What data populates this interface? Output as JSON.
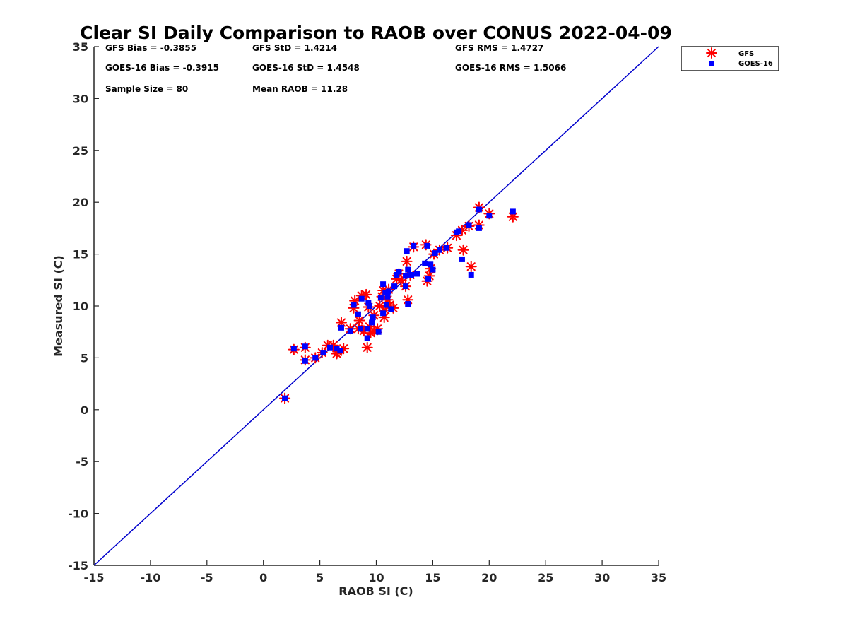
{
  "chart_data": {
    "type": "scatter",
    "title": "Clear SI Daily Comparison to RAOB over CONUS 2022-04-09",
    "xlabel": "RAOB SI (C)",
    "ylabel": "Measured SI (C)",
    "xlim": [
      -15,
      35
    ],
    "ylim": [
      -15,
      35
    ],
    "xticks": [
      "-15",
      "-10",
      "-5",
      "0",
      "5",
      "10",
      "15",
      "20",
      "25",
      "30",
      "35"
    ],
    "yticks": [
      "-15",
      "-10",
      "-5",
      "0",
      "5",
      "10",
      "15",
      "20",
      "25",
      "30",
      "35"
    ],
    "grid": false,
    "legend_position": "outside-top-right",
    "reference_line": {
      "type": "1:1",
      "color": "#0000cc",
      "x": [
        -15,
        35
      ],
      "y": [
        -15,
        35
      ]
    },
    "stats": [
      {
        "label": "GFS Bias = -0.3855"
      },
      {
        "label": "GFS StD = 1.4214"
      },
      {
        "label": "GFS RMS = 1.4727"
      },
      {
        "label": "GOES-16 Bias = -0.3915"
      },
      {
        "label": "GOES-16 StD = 1.4548"
      },
      {
        "label": "GOES-16 RMS = 1.5066"
      },
      {
        "label": "Sample Size = 80"
      },
      {
        "label": "Mean RAOB = 11.28"
      }
    ],
    "series": [
      {
        "name": "GFS",
        "marker": "asterisk",
        "color": "#ff0000",
        "points": [
          [
            1.9,
            1.1
          ],
          [
            2.7,
            5.8
          ],
          [
            3.7,
            4.8
          ],
          [
            3.7,
            6.0
          ],
          [
            4.6,
            5.0
          ],
          [
            5.2,
            5.5
          ],
          [
            5.7,
            6.2
          ],
          [
            6.2,
            6.2
          ],
          [
            6.6,
            5.6
          ],
          [
            6.5,
            5.4
          ],
          [
            6.9,
            8.4
          ],
          [
            7.1,
            5.9
          ],
          [
            7.7,
            7.8
          ],
          [
            8.0,
            9.8
          ],
          [
            8.1,
            10.5
          ],
          [
            8.4,
            7.8
          ],
          [
            8.5,
            8.6
          ],
          [
            8.7,
            11.0
          ],
          [
            8.9,
            7.6
          ],
          [
            9.1,
            11.1
          ],
          [
            9.2,
            6.0
          ],
          [
            9.3,
            9.9
          ],
          [
            9.4,
            8.0
          ],
          [
            9.5,
            7.4
          ],
          [
            9.8,
            7.6
          ],
          [
            9.8,
            9.1
          ],
          [
            10.1,
            7.8
          ],
          [
            10.3,
            10.0
          ],
          [
            10.5,
            10.9
          ],
          [
            10.6,
            11.5
          ],
          [
            10.7,
            8.9
          ],
          [
            10.8,
            9.6
          ],
          [
            11.0,
            10.6
          ],
          [
            11.1,
            11.6
          ],
          [
            11.2,
            10.1
          ],
          [
            11.5,
            9.8
          ],
          [
            11.8,
            12.6
          ],
          [
            12.0,
            13.1
          ],
          [
            12.2,
            12.5
          ],
          [
            12.6,
            11.9
          ],
          [
            12.8,
            10.6
          ],
          [
            12.7,
            14.3
          ],
          [
            13.0,
            13.0
          ],
          [
            13.3,
            15.7
          ],
          [
            14.4,
            15.9
          ],
          [
            14.5,
            12.4
          ],
          [
            14.7,
            12.9
          ],
          [
            14.8,
            13.6
          ],
          [
            15.1,
            15.0
          ],
          [
            15.6,
            15.4
          ],
          [
            16.3,
            15.6
          ],
          [
            17.1,
            16.8
          ],
          [
            17.6,
            17.3
          ],
          [
            17.7,
            15.4
          ],
          [
            18.2,
            17.7
          ],
          [
            18.4,
            13.8
          ],
          [
            19.1,
            19.5
          ],
          [
            19.1,
            17.8
          ],
          [
            20.0,
            18.9
          ],
          [
            22.1,
            18.6
          ]
        ]
      },
      {
        "name": "GOES-16",
        "marker": "square",
        "color": "#0000ff",
        "points": [
          [
            1.9,
            1.1
          ],
          [
            2.7,
            5.9
          ],
          [
            3.7,
            6.1
          ],
          [
            3.7,
            4.7
          ],
          [
            4.6,
            5.0
          ],
          [
            5.3,
            5.5
          ],
          [
            5.9,
            6.0
          ],
          [
            6.5,
            5.9
          ],
          [
            6.8,
            5.7
          ],
          [
            6.9,
            7.9
          ],
          [
            7.7,
            7.6
          ],
          [
            8.0,
            10.1
          ],
          [
            8.4,
            9.2
          ],
          [
            8.6,
            7.8
          ],
          [
            8.7,
            10.7
          ],
          [
            9.2,
            7.8
          ],
          [
            9.2,
            6.9
          ],
          [
            9.3,
            10.3
          ],
          [
            9.4,
            10.0
          ],
          [
            9.6,
            8.4
          ],
          [
            9.7,
            8.9
          ],
          [
            10.2,
            7.5
          ],
          [
            10.4,
            10.8
          ],
          [
            10.6,
            12.1
          ],
          [
            10.6,
            9.3
          ],
          [
            10.8,
            11.3
          ],
          [
            10.9,
            10.1
          ],
          [
            11.0,
            10.9
          ],
          [
            11.1,
            11.4
          ],
          [
            11.3,
            9.7
          ],
          [
            11.6,
            11.9
          ],
          [
            11.8,
            13.0
          ],
          [
            12.0,
            13.3
          ],
          [
            12.6,
            12.9
          ],
          [
            12.6,
            11.9
          ],
          [
            12.8,
            13.5
          ],
          [
            12.7,
            15.3
          ],
          [
            12.8,
            10.2
          ],
          [
            13.1,
            13.0
          ],
          [
            13.3,
            15.8
          ],
          [
            13.6,
            13.1
          ],
          [
            14.3,
            14.1
          ],
          [
            14.5,
            15.8
          ],
          [
            14.6,
            12.6
          ],
          [
            14.8,
            14.0
          ],
          [
            15.0,
            13.5
          ],
          [
            15.2,
            15.1
          ],
          [
            15.6,
            15.4
          ],
          [
            16.2,
            15.6
          ],
          [
            17.1,
            17.1
          ],
          [
            17.3,
            17.2
          ],
          [
            17.6,
            14.5
          ],
          [
            18.2,
            17.8
          ],
          [
            18.4,
            13.0
          ],
          [
            19.1,
            19.3
          ],
          [
            19.1,
            17.5
          ],
          [
            20.0,
            18.7
          ],
          [
            22.1,
            19.1
          ]
        ]
      }
    ]
  }
}
